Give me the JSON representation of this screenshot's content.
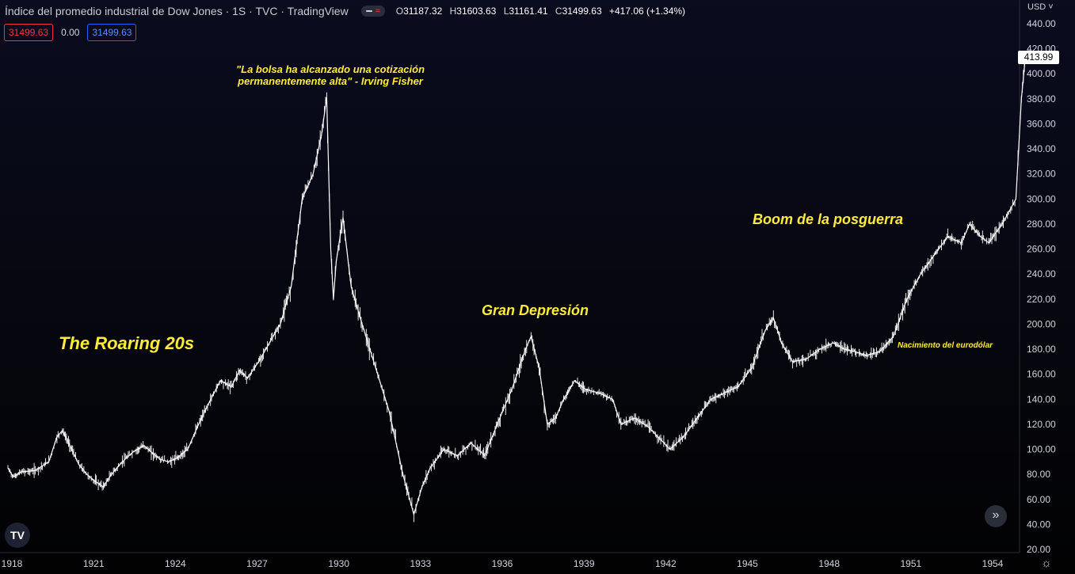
{
  "header": {
    "title": "Índice del promedio industrial de Dow Jones · 1S · TVC · TradingView",
    "ohlc": {
      "open_key": "O",
      "open": "31187.32",
      "high_key": "H",
      "high": "31603.63",
      "low_key": "L",
      "low": "31161.41",
      "close_key": "C",
      "close": "31499.63",
      "change": "+417.06 (+1.34%)"
    }
  },
  "badges": {
    "bid": "31499.63",
    "spread": "0.00",
    "ask": "31499.63"
  },
  "price_scale": {
    "currency": "USD",
    "last_price": "413.99"
  },
  "chart_data": {
    "type": "line",
    "title": "",
    "xlabel": "",
    "ylabel": "",
    "ylim": [
      20,
      440
    ],
    "xlim": [
      1918,
      1955.4
    ],
    "y_ticks": [
      "20.00",
      "40.00",
      "60.00",
      "80.00",
      "100.00",
      "120.00",
      "140.00",
      "160.00",
      "180.00",
      "200.00",
      "220.00",
      "240.00",
      "260.00",
      "280.00",
      "300.00",
      "320.00",
      "340.00",
      "360.00",
      "380.00",
      "400.00",
      "420.00",
      "440.00"
    ],
    "x_ticks": [
      "1918",
      "1921",
      "1924",
      "1927",
      "1930",
      "1933",
      "1936",
      "1939",
      "1942",
      "1945",
      "1948",
      "1951",
      "1954"
    ],
    "series": [
      {
        "name": "",
        "x": [
          1918.0,
          1918.2,
          1918.5,
          1919.0,
          1919.5,
          1919.8,
          1920.0,
          1920.3,
          1920.6,
          1920.9,
          1921.1,
          1921.5,
          1921.8,
          1922.2,
          1922.6,
          1923.0,
          1923.3,
          1923.6,
          1923.9,
          1924.2,
          1924.6,
          1925.0,
          1925.4,
          1925.8,
          1926.2,
          1926.5,
          1926.8,
          1927.2,
          1927.6,
          1928.0,
          1928.4,
          1928.8,
          1929.2,
          1929.5,
          1929.7,
          1929.8,
          1929.85,
          1929.95,
          1930.05,
          1930.3,
          1930.6,
          1931.0,
          1931.5,
          1932.0,
          1932.5,
          1932.9,
          1933.2,
          1933.5,
          1934.0,
          1934.5,
          1935.0,
          1935.5,
          1936.0,
          1936.5,
          1937.0,
          1937.2,
          1937.5,
          1937.8,
          1938.1,
          1938.4,
          1938.8,
          1939.2,
          1939.7,
          1940.2,
          1940.5,
          1941.0,
          1941.5,
          1942.0,
          1942.3,
          1942.8,
          1943.3,
          1943.8,
          1944.3,
          1944.8,
          1945.3,
          1945.8,
          1946.1,
          1946.4,
          1946.8,
          1947.3,
          1947.8,
          1948.3,
          1948.7,
          1949.1,
          1949.5,
          1950.0,
          1950.5,
          1951.0,
          1951.5,
          1952.0,
          1952.5,
          1953.0,
          1953.3,
          1953.7,
          1954.0,
          1954.5,
          1955.0,
          1955.2,
          1955.35
        ],
        "y": [
          85,
          78,
          82,
          83,
          90,
          110,
          115,
          102,
          88,
          80,
          76,
          70,
          80,
          90,
          98,
          103,
          97,
          92,
          90,
          93,
          100,
          120,
          138,
          155,
          150,
          163,
          157,
          170,
          185,
          200,
          230,
          300,
          320,
          350,
          381,
          300,
          260,
          220,
          250,
          285,
          230,
          200,
          165,
          130,
          80,
          48,
          70,
          85,
          100,
          95,
          105,
          95,
          122,
          148,
          180,
          190,
          165,
          120,
          125,
          140,
          155,
          148,
          145,
          140,
          120,
          125,
          118,
          107,
          100,
          110,
          125,
          140,
          145,
          150,
          165,
          195,
          205,
          185,
          170,
          172,
          180,
          185,
          180,
          178,
          175,
          178,
          190,
          220,
          240,
          255,
          270,
          265,
          280,
          270,
          265,
          280,
          300,
          380,
          414
        ]
      }
    ]
  },
  "annotations": {
    "roaring": "The Roaring 20s",
    "quote_line1": "\"La bolsa ha alcanzado una cotización",
    "quote_line2": "permanentemente alta\" - Irving Fisher",
    "depression": "Gran Depresión",
    "boom": "Boom de la posguerra",
    "eurodollar": "Nacimiento del eurodólar"
  },
  "colors": {
    "background": "#06070f",
    "line": "#ffffff",
    "annotation": "#ffeb3b",
    "axis_text": "#d1d4dc"
  },
  "icons": {
    "logo": "tradingview-logo-icon",
    "scroll": "double-chevron-right-icon",
    "settings": "gear-icon"
  },
  "controls": {
    "logo_text": "TV",
    "scroll_glyph": "»",
    "settings_glyph": "☼",
    "currency_caret": "˅"
  }
}
